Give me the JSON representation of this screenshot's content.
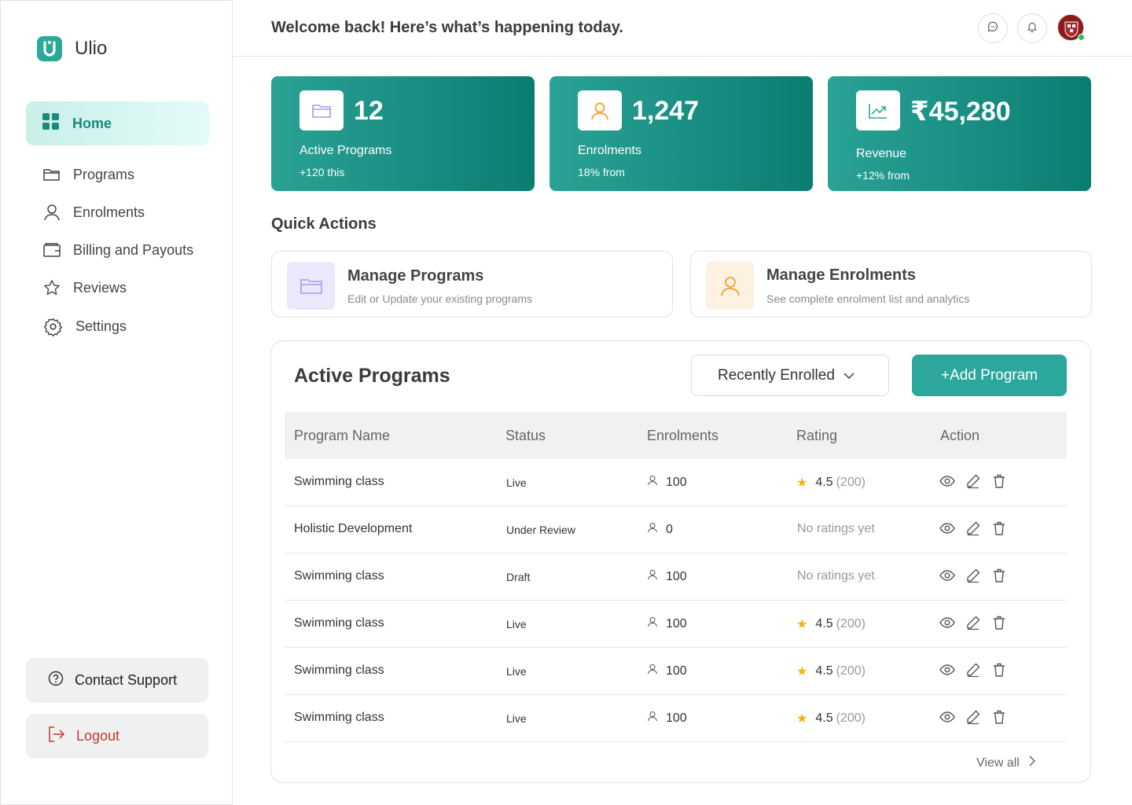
{
  "app": {
    "name": "Ulio"
  },
  "sidebar": {
    "home": "Home",
    "items": [
      {
        "label": "Programs",
        "icon": "folder-icon"
      },
      {
        "label": "Enrolments",
        "icon": "user-icon"
      },
      {
        "label": "Billing and Payouts",
        "icon": "wallet-icon"
      },
      {
        "label": "Reviews",
        "icon": "star-icon"
      },
      {
        "label": "Settings",
        "icon": "gear-icon"
      }
    ],
    "contact": "Contact Support",
    "logout": "Logout"
  },
  "header": {
    "title": "Welcome back! Here’s what’s happening today."
  },
  "stats": [
    {
      "value": "12",
      "label": "Active Programs",
      "sub": "+120 this"
    },
    {
      "value": "1,247",
      "label": "Enrolments",
      "sub": "18% from"
    },
    {
      "value": "₹45,280",
      "label": "Revenue",
      "sub": "+12% from"
    }
  ],
  "quick_actions": {
    "title": "Quick Actions",
    "items": [
      {
        "title": "Manage Programs",
        "sub": "Edit or Update your existing programs"
      },
      {
        "title": "Manage Enrolments",
        "sub": "See complete enrolment list and analytics"
      }
    ]
  },
  "programs": {
    "title": "Active Programs",
    "filter": "Recently Enrolled",
    "add": "+Add Program",
    "columns": [
      "Program Name",
      "Status",
      "Enrolments",
      "Rating",
      "Action"
    ],
    "rows": [
      {
        "name": "Swimming class",
        "status": "Live",
        "enrolments": "100",
        "rating": "4.5",
        "count": "(200)"
      },
      {
        "name": "Holistic Development",
        "status": "Under Review",
        "enrolments": "0",
        "rating": "",
        "no_rating": "No ratings yet"
      },
      {
        "name": "Swimming class",
        "status": "Draft",
        "enrolments": "100",
        "rating": "",
        "no_rating": "No ratings yet"
      },
      {
        "name": "Swimming class",
        "status": "Live",
        "enrolments": "100",
        "rating": "4.5",
        "count": "(200)"
      },
      {
        "name": "Swimming class",
        "status": "Live",
        "enrolments": "100",
        "rating": "4.5",
        "count": "(200)"
      },
      {
        "name": "Swimming class",
        "status": "Live",
        "enrolments": "100",
        "rating": "4.5",
        "count": "(200)"
      }
    ],
    "view_all": "View all"
  },
  "colors": {
    "accent": "#2ba89b",
    "accent_dark": "#0a7d71",
    "star": "#f4b400",
    "logout": "#c0392b"
  }
}
